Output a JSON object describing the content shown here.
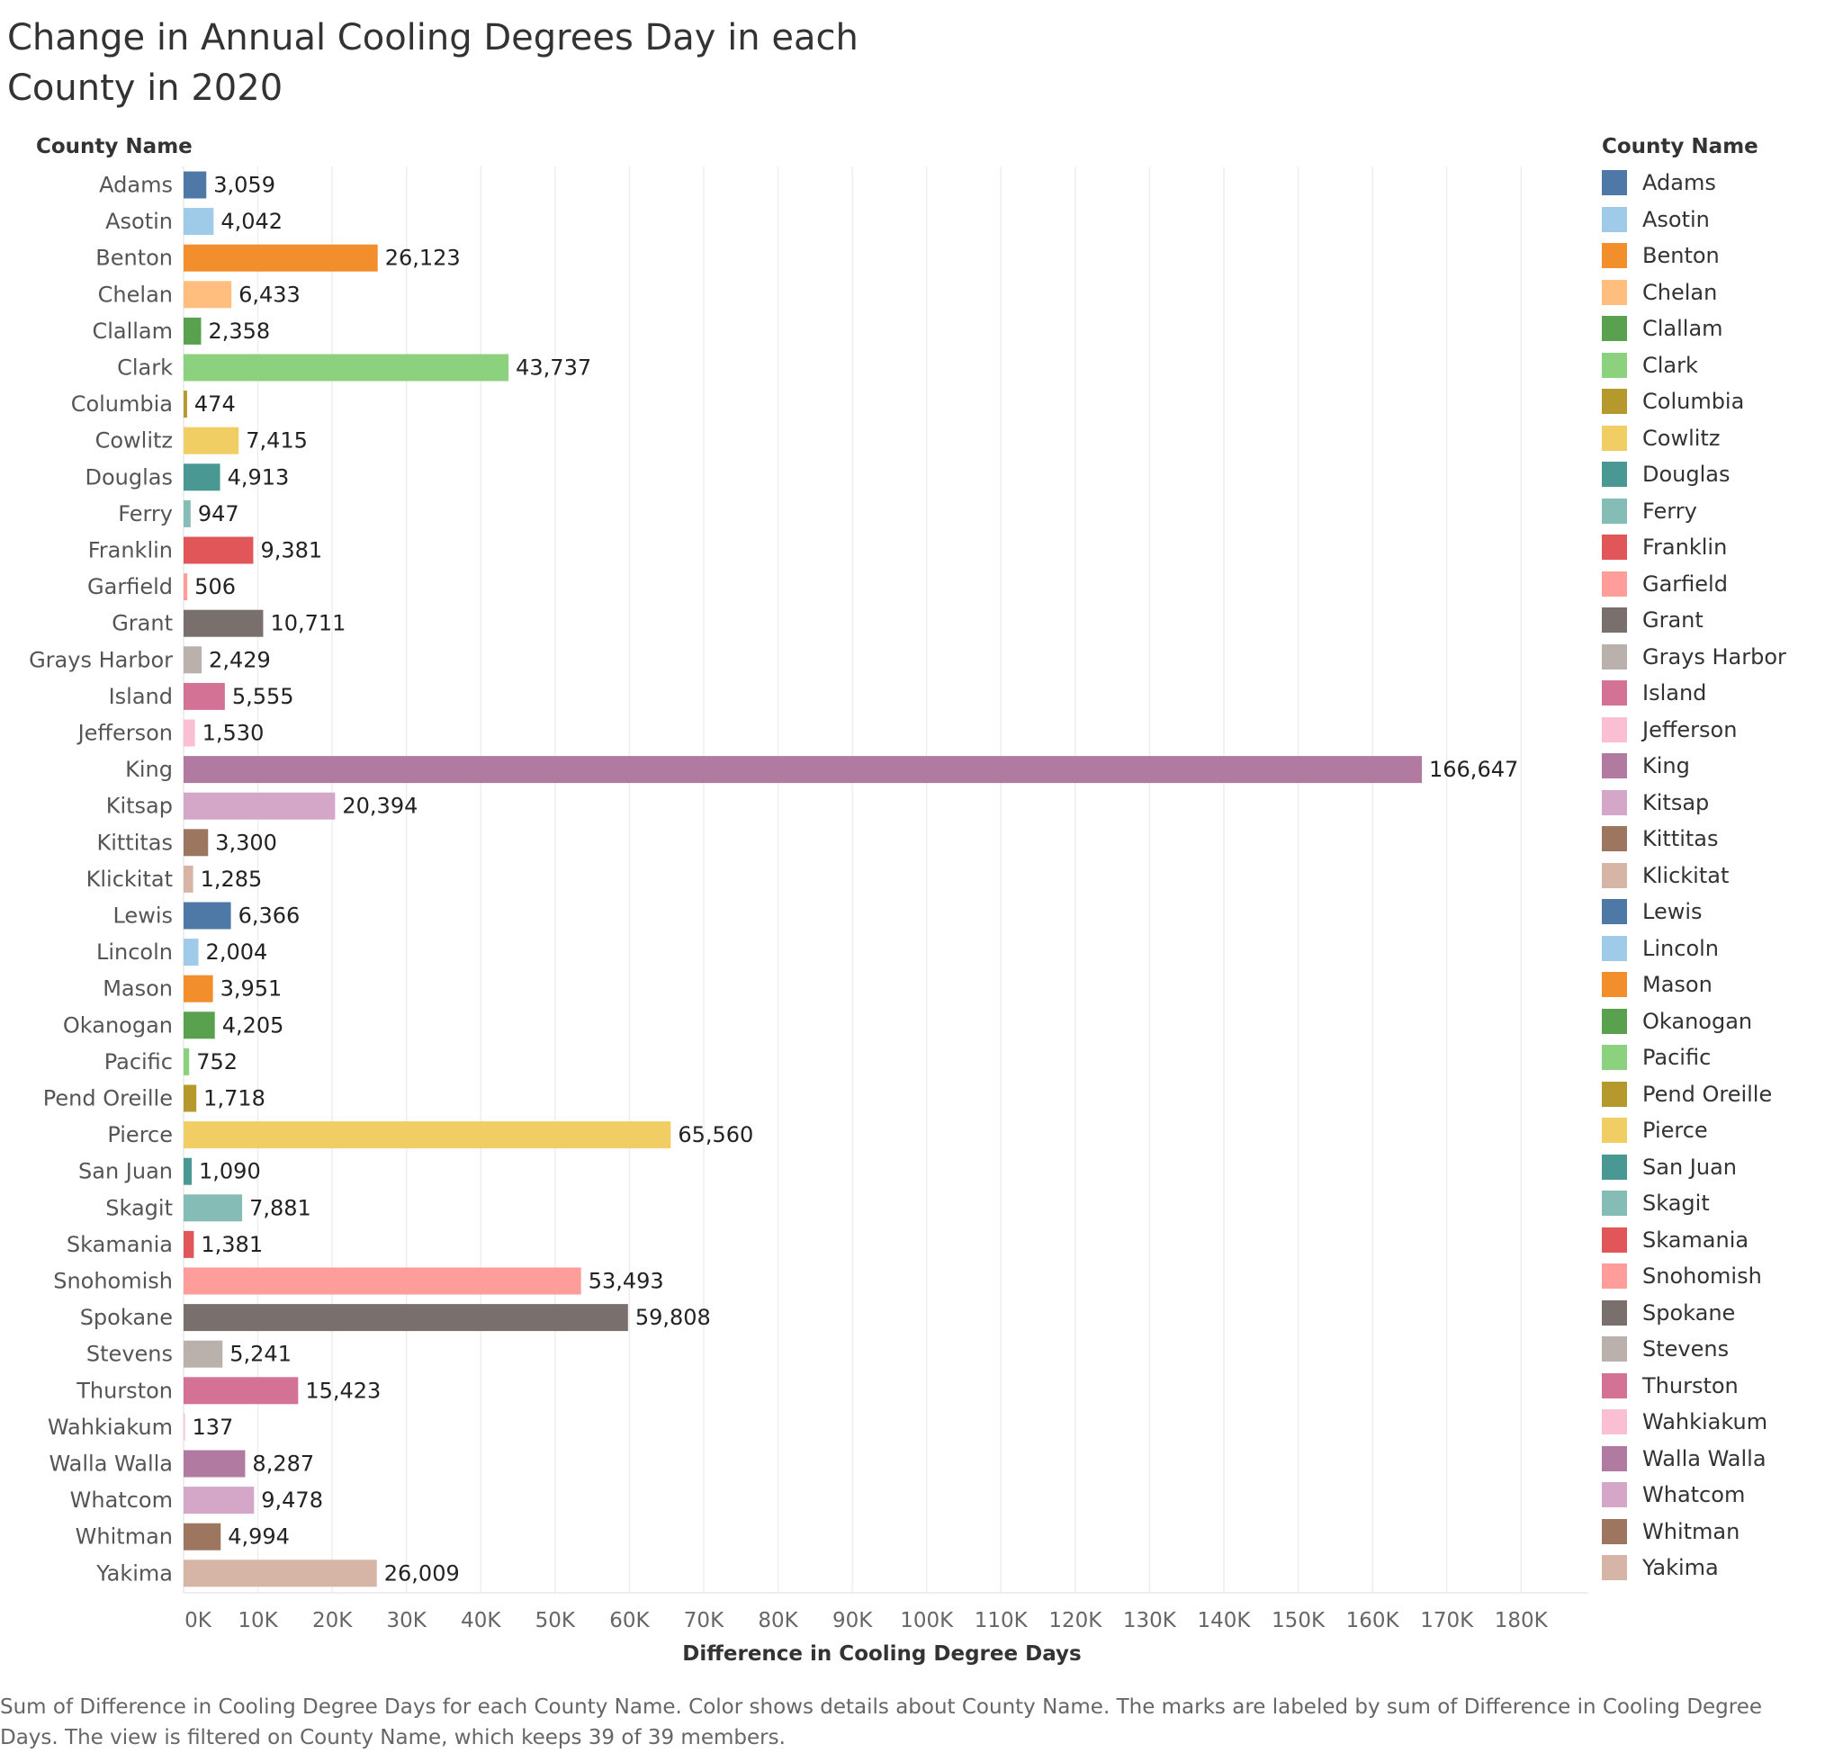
{
  "title": "Change in Annual Cooling Degrees Day in each County in 2020",
  "caption": "Sum of Difference in Cooling Degree Days for each County Name.  Color shows details about County Name.  The marks are labeled by sum of Difference in Cooling Degree Days. The view is filtered on County Name, which keeps 39 of 39 members.",
  "legend_title": "County Name",
  "chart_data": {
    "type": "bar",
    "orientation": "horizontal",
    "ylabel": "County Name",
    "xlabel": "Difference in Cooling Degree Days",
    "xlim": [
      0,
      180000
    ],
    "xticks": [
      "0K",
      "10K",
      "20K",
      "30K",
      "40K",
      "50K",
      "60K",
      "70K",
      "80K",
      "90K",
      "100K",
      "110K",
      "120K",
      "130K",
      "140K",
      "150K",
      "160K",
      "170K",
      "180K"
    ],
    "grid": "vertical",
    "legend_position": "right",
    "categories": [
      "Adams",
      "Asotin",
      "Benton",
      "Chelan",
      "Clallam",
      "Clark",
      "Columbia",
      "Cowlitz",
      "Douglas",
      "Ferry",
      "Franklin",
      "Garfield",
      "Grant",
      "Grays Harbor",
      "Island",
      "Jefferson",
      "King",
      "Kitsap",
      "Kittitas",
      "Klickitat",
      "Lewis",
      "Lincoln",
      "Mason",
      "Okanogan",
      "Pacific",
      "Pend Oreille",
      "Pierce",
      "San Juan",
      "Skagit",
      "Skamania",
      "Snohomish",
      "Spokane",
      "Stevens",
      "Thurston",
      "Wahkiakum",
      "Walla Walla",
      "Whatcom",
      "Whitman",
      "Yakima"
    ],
    "values": [
      3059,
      4042,
      26123,
      6433,
      2358,
      43737,
      474,
      7415,
      4913,
      947,
      9381,
      506,
      10711,
      2429,
      5555,
      1530,
      166647,
      20394,
      3300,
      1285,
      6366,
      2004,
      3951,
      4205,
      752,
      1718,
      65560,
      1090,
      7881,
      1381,
      53493,
      59808,
      5241,
      15423,
      137,
      8287,
      9478,
      4994,
      26009
    ],
    "labels": [
      "3,059",
      "4,042",
      "26,123",
      "6,433",
      "2,358",
      "43,737",
      "474",
      "7,415",
      "4,913",
      "947",
      "9,381",
      "506",
      "10,711",
      "2,429",
      "5,555",
      "1,530",
      "166,647",
      "20,394",
      "3,300",
      "1,285",
      "6,366",
      "2,004",
      "3,951",
      "4,205",
      "752",
      "1,718",
      "65,560",
      "1,090",
      "7,881",
      "1,381",
      "53,493",
      "59,808",
      "5,241",
      "15,423",
      "137",
      "8,287",
      "9,478",
      "4,994",
      "26,009"
    ],
    "colors": [
      "#4e79a7",
      "#a0cbe8",
      "#f28e2b",
      "#ffbe7d",
      "#59a14f",
      "#8cd17d",
      "#b6992d",
      "#f1ce63",
      "#499894",
      "#86bcb6",
      "#e15759",
      "#ff9d9a",
      "#79706e",
      "#bab0ac",
      "#d37295",
      "#fabfd2",
      "#b07aa1",
      "#d4a6c8",
      "#9d7660",
      "#d7b5a6",
      "#4e79a7",
      "#a0cbe8",
      "#f28e2b",
      "#59a14f",
      "#8cd17d",
      "#b6992d",
      "#f1ce63",
      "#499894",
      "#86bcb6",
      "#e15759",
      "#ff9d9a",
      "#79706e",
      "#bab0ac",
      "#d37295",
      "#fabfd2",
      "#b07aa1",
      "#d4a6c8",
      "#9d7660",
      "#d7b5a6"
    ]
  }
}
